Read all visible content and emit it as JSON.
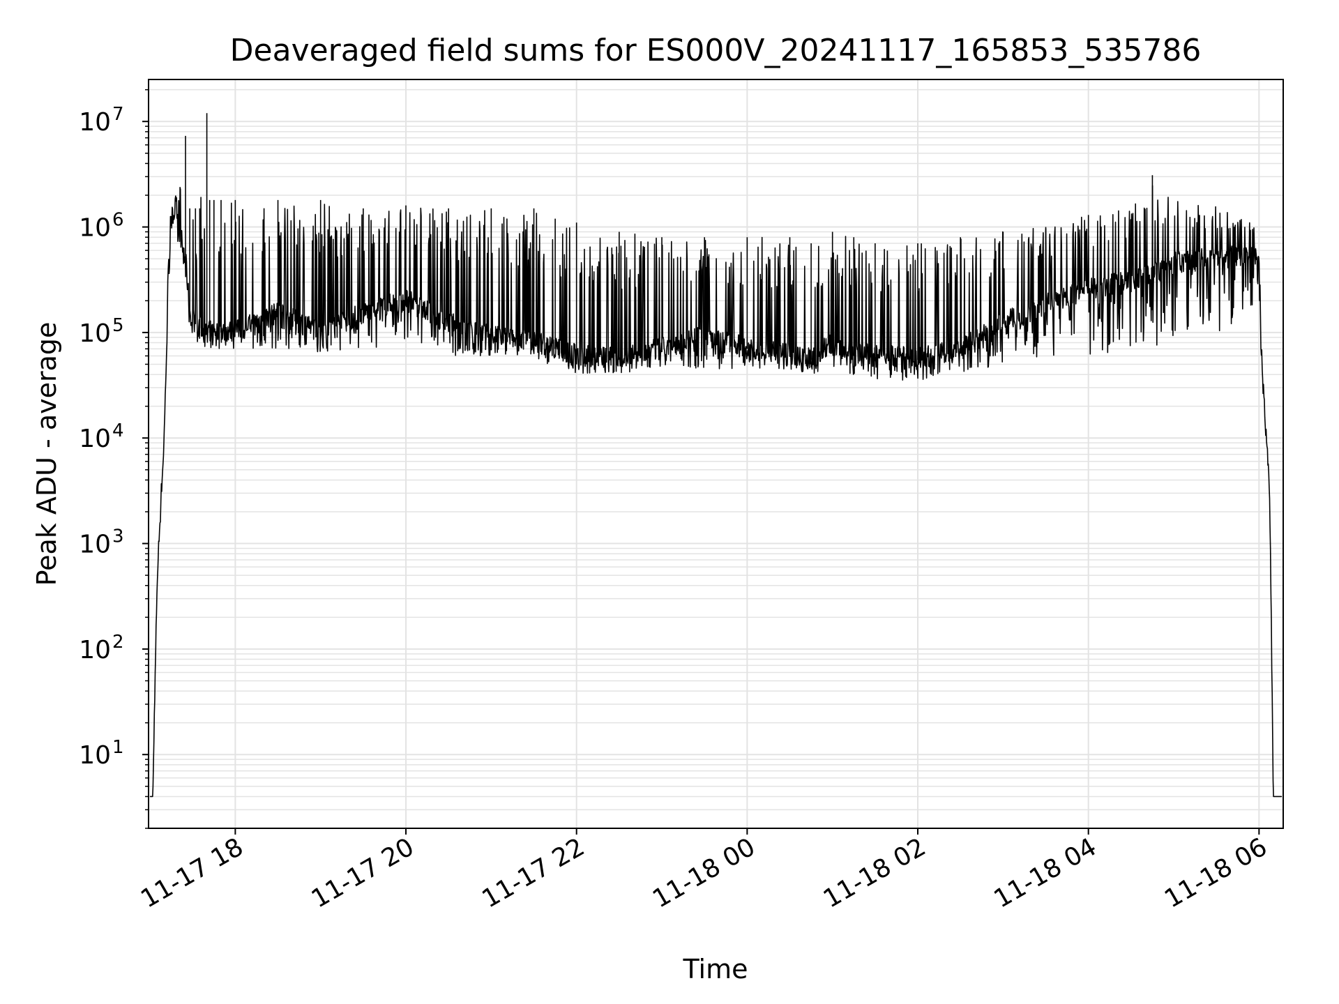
{
  "chart_data": {
    "type": "line",
    "title": "Deaveraged field sums for ES000V_20241117_165853_535786",
    "xlabel": "Time",
    "ylabel": "Peak ADU - average",
    "yscale": "log",
    "ylim": [
      2,
      25000000
    ],
    "xlim": [
      "2024-11-17 16:59",
      "2024-11-18 06:17"
    ],
    "grid": true,
    "legend": "none",
    "line_color": "#000000",
    "grid_color": "#e3e3e3",
    "x_ticks": [
      {
        "label": "11-17 18",
        "value": "2024-11-17 18:00"
      },
      {
        "label": "11-17 20",
        "value": "2024-11-17 20:00"
      },
      {
        "label": "11-17 22",
        "value": "2024-11-17 22:00"
      },
      {
        "label": "11-18 00",
        "value": "2024-11-18 00:00"
      },
      {
        "label": "11-18 02",
        "value": "2024-11-18 02:00"
      },
      {
        "label": "11-18 04",
        "value": "2024-11-18 04:00"
      },
      {
        "label": "11-18 06",
        "value": "2024-11-18 06:00"
      }
    ],
    "y_ticks": [
      {
        "base": "10",
        "exp": "1",
        "value": 10
      },
      {
        "base": "10",
        "exp": "2",
        "value": 100
      },
      {
        "base": "10",
        "exp": "3",
        "value": 1000
      },
      {
        "base": "10",
        "exp": "4",
        "value": 10000
      },
      {
        "base": "10",
        "exp": "5",
        "value": 100000
      },
      {
        "base": "10",
        "exp": "6",
        "value": 1000000
      },
      {
        "base": "10",
        "exp": "7",
        "value": 10000000
      }
    ],
    "series": [
      {
        "x": [
          "2024-11-17 17:00",
          "2024-11-17 17:02",
          "2024-11-17 17:05",
          "2024-11-17 17:08",
          "2024-11-17 17:10",
          "2024-11-17 17:13",
          "2024-11-17 17:15",
          "2024-11-17 17:18",
          "2024-11-17 17:20",
          "2024-11-17 17:25",
          "2024-11-17 17:28",
          "2024-11-17 17:32",
          "2024-11-17 17:35",
          "2024-11-17 17:40",
          "2024-11-17 17:42",
          "2024-11-17 17:45",
          "2024-11-17 17:50",
          "2024-11-17 18:00",
          "2024-11-17 18:30",
          "2024-11-17 19:00",
          "2024-11-17 19:30",
          "2024-11-17 20:00",
          "2024-11-17 20:30",
          "2024-11-17 21:00",
          "2024-11-17 21:30",
          "2024-11-17 21:45",
          "2024-11-17 22:00",
          "2024-11-17 22:30",
          "2024-11-17 23:00",
          "2024-11-17 23:30",
          "2024-11-18 00:00",
          "2024-11-18 00:30",
          "2024-11-18 00:45",
          "2024-11-18 01:00",
          "2024-11-18 01:15",
          "2024-11-18 01:30",
          "2024-11-18 02:00",
          "2024-11-18 02:30",
          "2024-11-18 03:00",
          "2024-11-18 03:30",
          "2024-11-18 04:00",
          "2024-11-18 04:30",
          "2024-11-18 04:45",
          "2024-11-18 05:00",
          "2024-11-18 05:30",
          "2024-11-18 06:00",
          "2024-11-18 06:02",
          "2024-11-18 06:05",
          "2024-11-18 06:07",
          "2024-11-18 06:08",
          "2024-11-18 06:10",
          "2024-11-18 06:16"
        ],
        "baseline": [
          4,
          4,
          400,
          3000,
          10000,
          300000,
          1000000,
          1500000,
          1000000,
          500000,
          150000,
          120000,
          110000,
          100000,
          100000,
          100000,
          100000,
          100000,
          150000,
          100000,
          150000,
          200000,
          120000,
          90000,
          80000,
          70000,
          60000,
          55000,
          70000,
          90000,
          70000,
          60000,
          55000,
          80000,
          60000,
          60000,
          55000,
          70000,
          120000,
          180000,
          250000,
          300000,
          350000,
          450000,
          500000,
          550000,
          50000,
          10000,
          5000,
          1000,
          4,
          4
        ],
        "peak": [
          4,
          4,
          400,
          3000,
          10000,
          600000,
          1800000,
          2000000,
          1800000,
          7300000,
          1500000,
          1500000,
          1500000,
          12000000,
          1800000,
          1800000,
          1800000,
          1800000,
          1800000,
          1800000,
          1500000,
          1600000,
          1500000,
          1500000,
          1500000,
          1200000,
          1100000,
          900000,
          800000,
          800000,
          800000,
          800000,
          700000,
          900000,
          800000,
          700000,
          700000,
          800000,
          900000,
          1000000,
          1300000,
          1500000,
          3100000,
          1800000,
          1600000,
          1200000,
          60000,
          12000,
          5000,
          1000,
          4,
          4
        ],
        "trough": [
          4,
          4,
          400,
          3000,
          8000,
          250000,
          800000,
          900000,
          600000,
          300000,
          100000,
          80000,
          75000,
          70000,
          70000,
          70000,
          70000,
          70000,
          70000,
          65000,
          70000,
          70000,
          60000,
          60000,
          60000,
          45000,
          40000,
          40000,
          45000,
          45000,
          45000,
          45000,
          40000,
          45000,
          40000,
          35000,
          35000,
          40000,
          50000,
          60000,
          60000,
          60000,
          70000,
          80000,
          80000,
          200000,
          40000,
          8000,
          4000,
          800,
          4,
          4
        ]
      }
    ]
  }
}
